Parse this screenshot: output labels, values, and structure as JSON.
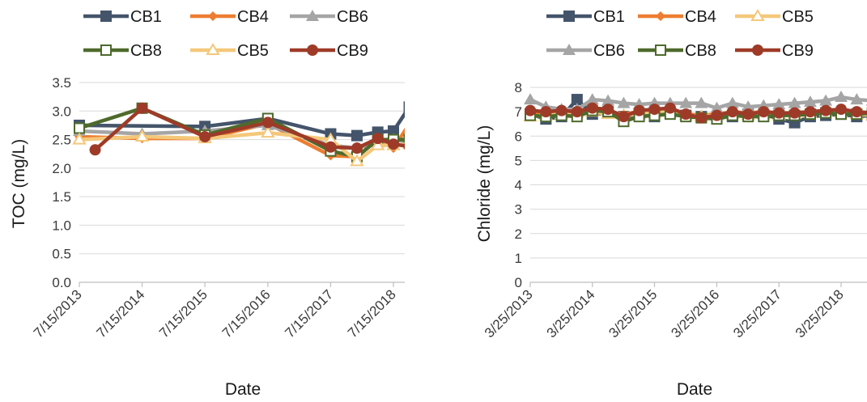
{
  "colors": {
    "CB1": "#44546a",
    "CB4": "#ed7d31",
    "CB5": "#f4c87a",
    "CB6": "#a5a5a5",
    "CB8": "#4e6a2c",
    "CB9": "#9e3b28"
  },
  "chart_data": [
    {
      "type": "line",
      "title": "",
      "xlabel": "Date",
      "ylabel": "TOC (mg/L)",
      "ylim": [
        0,
        3.5
      ],
      "y_ticks": [
        "0.0",
        "0.5",
        "1.0",
        "1.5",
        "2.0",
        "2.5",
        "3.0",
        "3.5"
      ],
      "x_ticks": [
        "7/15/2013",
        "7/15/2014",
        "7/15/2015",
        "7/15/2016",
        "7/15/2017",
        "7/15/2018"
      ],
      "grid": "horizontal",
      "legend": {
        "placement": "top",
        "rows": [
          [
            "CB1",
            "CB4",
            "CB6"
          ],
          [
            "CB8",
            "CB5",
            "CB9"
          ]
        ]
      },
      "series": [
        {
          "name": "CB1",
          "marker": "square",
          "x": [
            "2013-07-15",
            "2015-07-15",
            "2016-07-15",
            "2017-07-15",
            "2017-12-15",
            "2018-04-15",
            "2018-07-15",
            "2018-10-15"
          ],
          "y": [
            2.75,
            2.73,
            2.87,
            2.6,
            2.57,
            2.63,
            2.65,
            3.07
          ]
        },
        {
          "name": "CB4",
          "marker": "diamond",
          "x": [
            "2013-07-15",
            "2014-07-15",
            "2015-07-15",
            "2016-07-15",
            "2017-07-15",
            "2017-12-15",
            "2018-04-15",
            "2018-07-15",
            "2018-10-15"
          ],
          "y": [
            2.55,
            2.52,
            2.52,
            2.78,
            2.22,
            2.2,
            2.5,
            2.35,
            2.77
          ]
        },
        {
          "name": "CB6",
          "marker": "triangle",
          "x": [
            "2013-07-15",
            "2014-07-15",
            "2015-07-15",
            "2016-07-15",
            "2017-07-15",
            "2017-12-15",
            "2018-04-15",
            "2018-07-15",
            "2018-10-15"
          ],
          "y": [
            2.65,
            2.6,
            2.65,
            2.75,
            2.4,
            2.35,
            2.45,
            2.5,
            2.45
          ]
        },
        {
          "name": "CB8",
          "marker": "open-square",
          "x": [
            "2013-07-15",
            "2014-07-15",
            "2015-07-15",
            "2016-07-15",
            "2017-07-15",
            "2017-12-15",
            "2018-04-15",
            "2018-07-15",
            "2018-10-15"
          ],
          "y": [
            2.7,
            3.05,
            2.58,
            2.87,
            2.3,
            2.2,
            2.5,
            2.5,
            2.5
          ]
        },
        {
          "name": "CB5",
          "marker": "open-triangle",
          "x": [
            "2013-07-15",
            "2014-07-15",
            "2015-07-15",
            "2016-07-15",
            "2017-07-15",
            "2017-12-15",
            "2018-04-15",
            "2018-07-15",
            "2018-10-15"
          ],
          "y": [
            2.5,
            2.55,
            2.52,
            2.62,
            2.5,
            2.12,
            2.4,
            2.4,
            2.42
          ]
        },
        {
          "name": "CB9",
          "marker": "circle",
          "x": [
            "2013-10-15",
            "2014-07-15",
            "2015-07-15",
            "2016-07-15",
            "2017-07-15",
            "2017-12-15",
            "2018-04-15",
            "2018-07-15",
            "2018-10-15"
          ],
          "y": [
            2.32,
            3.05,
            2.55,
            2.8,
            2.37,
            2.35,
            2.52,
            2.42,
            2.38
          ]
        }
      ]
    },
    {
      "type": "line",
      "title": "",
      "xlabel": "Date",
      "ylabel": "Chloride (mg/L)",
      "ylim": [
        0,
        8
      ],
      "y_ticks": [
        "0",
        "1",
        "2",
        "3",
        "4",
        "5",
        "6",
        "7",
        "8"
      ],
      "x_ticks": [
        "3/25/2013",
        "3/25/2014",
        "3/25/2015",
        "3/25/2016",
        "3/25/2017",
        "3/25/2018"
      ],
      "grid": "horizontal",
      "legend": {
        "placement": "top",
        "rows": [
          [
            "CB1",
            "CB4",
            "CB5"
          ],
          [
            "CB6",
            "CB8",
            "CB9"
          ]
        ]
      },
      "series": [
        {
          "name": "CB1",
          "marker": "square",
          "x": [
            "2013-03-25",
            "2013-06-25",
            "2013-09-25",
            "2013-12-25",
            "2014-03-25",
            "2014-06-25",
            "2014-09-25",
            "2014-12-25",
            "2015-03-25",
            "2015-06-25",
            "2015-09-25",
            "2015-12-25",
            "2016-03-25",
            "2016-06-25",
            "2016-09-25",
            "2016-12-25",
            "2017-03-25",
            "2017-06-25",
            "2017-09-25",
            "2017-12-25",
            "2018-03-25",
            "2018-06-25",
            "2018-09-25"
          ],
          "y": [
            6.9,
            6.7,
            6.8,
            7.5,
            6.9,
            6.95,
            6.8,
            6.9,
            6.8,
            7.0,
            6.85,
            6.8,
            6.75,
            6.8,
            6.9,
            6.9,
            6.7,
            6.55,
            6.8,
            6.85,
            6.9,
            6.8,
            6.85
          ]
        },
        {
          "name": "CB4",
          "marker": "diamond",
          "x": [
            "2013-03-25",
            "2013-06-25",
            "2013-09-25",
            "2013-12-25",
            "2014-03-25",
            "2014-06-25",
            "2014-09-25",
            "2014-12-25",
            "2015-03-25",
            "2015-06-25",
            "2015-09-25",
            "2015-12-25",
            "2016-03-25",
            "2016-06-25",
            "2016-09-25",
            "2016-12-25",
            "2017-03-25",
            "2017-06-25",
            "2017-09-25",
            "2017-12-25",
            "2018-03-25",
            "2018-06-25",
            "2018-09-25"
          ],
          "y": [
            7.0,
            6.95,
            7.0,
            7.05,
            7.1,
            7.0,
            6.9,
            7.0,
            7.05,
            7.1,
            6.9,
            6.85,
            6.9,
            7.0,
            6.95,
            7.0,
            6.9,
            6.95,
            7.0,
            7.05,
            7.0,
            6.9,
            6.95
          ]
        },
        {
          "name": "CB5",
          "marker": "open-triangle",
          "x": [
            "2013-03-25",
            "2013-06-25",
            "2013-09-25",
            "2013-12-25",
            "2014-03-25",
            "2014-06-25",
            "2014-09-25",
            "2014-12-25",
            "2015-03-25",
            "2015-06-25",
            "2015-09-25",
            "2015-12-25",
            "2016-03-25",
            "2016-06-25",
            "2016-09-25",
            "2016-12-25",
            "2017-03-25",
            "2017-06-25",
            "2017-09-25",
            "2017-12-25",
            "2018-03-25",
            "2018-06-25",
            "2018-09-25"
          ],
          "y": [
            6.8,
            6.85,
            6.9,
            6.95,
            7.0,
            6.9,
            6.85,
            6.9,
            6.95,
            7.0,
            6.85,
            6.8,
            6.85,
            6.9,
            6.85,
            6.9,
            6.85,
            6.9,
            6.95,
            7.0,
            6.95,
            6.9,
            6.85
          ]
        },
        {
          "name": "CB6",
          "marker": "triangle",
          "x": [
            "2013-03-25",
            "2013-06-25",
            "2013-09-25",
            "2013-12-25",
            "2014-03-25",
            "2014-06-25",
            "2014-09-25",
            "2014-12-25",
            "2015-03-25",
            "2015-06-25",
            "2015-09-25",
            "2015-12-25",
            "2016-03-25",
            "2016-06-25",
            "2016-09-25",
            "2016-12-25",
            "2017-03-25",
            "2017-06-25",
            "2017-09-25",
            "2017-12-25",
            "2018-03-25",
            "2018-06-25",
            "2018-09-25"
          ],
          "y": [
            7.5,
            7.2,
            7.1,
            7.1,
            7.5,
            7.45,
            7.35,
            7.3,
            7.35,
            7.35,
            7.35,
            7.35,
            7.15,
            7.35,
            7.2,
            7.25,
            7.3,
            7.35,
            7.4,
            7.45,
            7.6,
            7.5,
            7.45
          ]
        },
        {
          "name": "CB8",
          "marker": "open-square",
          "x": [
            "2013-03-25",
            "2013-06-25",
            "2013-09-25",
            "2013-12-25",
            "2014-03-25",
            "2014-06-25",
            "2014-09-25",
            "2014-12-25",
            "2015-03-25",
            "2015-06-25",
            "2015-09-25",
            "2015-12-25",
            "2016-03-25",
            "2016-06-25",
            "2016-09-25",
            "2016-12-25",
            "2017-03-25",
            "2017-06-25",
            "2017-09-25",
            "2017-12-25",
            "2018-03-25",
            "2018-06-25",
            "2018-09-25"
          ],
          "y": [
            6.85,
            6.8,
            6.85,
            6.8,
            7.05,
            7.0,
            6.6,
            6.8,
            6.85,
            6.9,
            6.8,
            6.75,
            6.7,
            6.85,
            6.8,
            6.8,
            6.85,
            6.85,
            6.9,
            6.95,
            6.9,
            6.9,
            6.95
          ]
        },
        {
          "name": "CB9",
          "marker": "circle",
          "x": [
            "2013-03-25",
            "2013-06-25",
            "2013-09-25",
            "2013-12-25",
            "2014-03-25",
            "2014-06-25",
            "2014-09-25",
            "2014-12-25",
            "2015-03-25",
            "2015-06-25",
            "2015-09-25",
            "2015-12-25",
            "2016-03-25",
            "2016-06-25",
            "2016-09-25",
            "2016-12-25",
            "2017-03-25",
            "2017-06-25",
            "2017-09-25",
            "2017-12-25",
            "2018-03-25",
            "2018-06-25",
            "2018-09-25"
          ],
          "y": [
            7.05,
            7.0,
            7.05,
            7.0,
            7.15,
            7.1,
            6.8,
            7.05,
            7.1,
            7.15,
            6.9,
            6.75,
            6.85,
            7.0,
            6.9,
            7.0,
            6.95,
            6.95,
            7.0,
            7.05,
            7.1,
            7.0,
            6.95
          ]
        }
      ]
    }
  ]
}
